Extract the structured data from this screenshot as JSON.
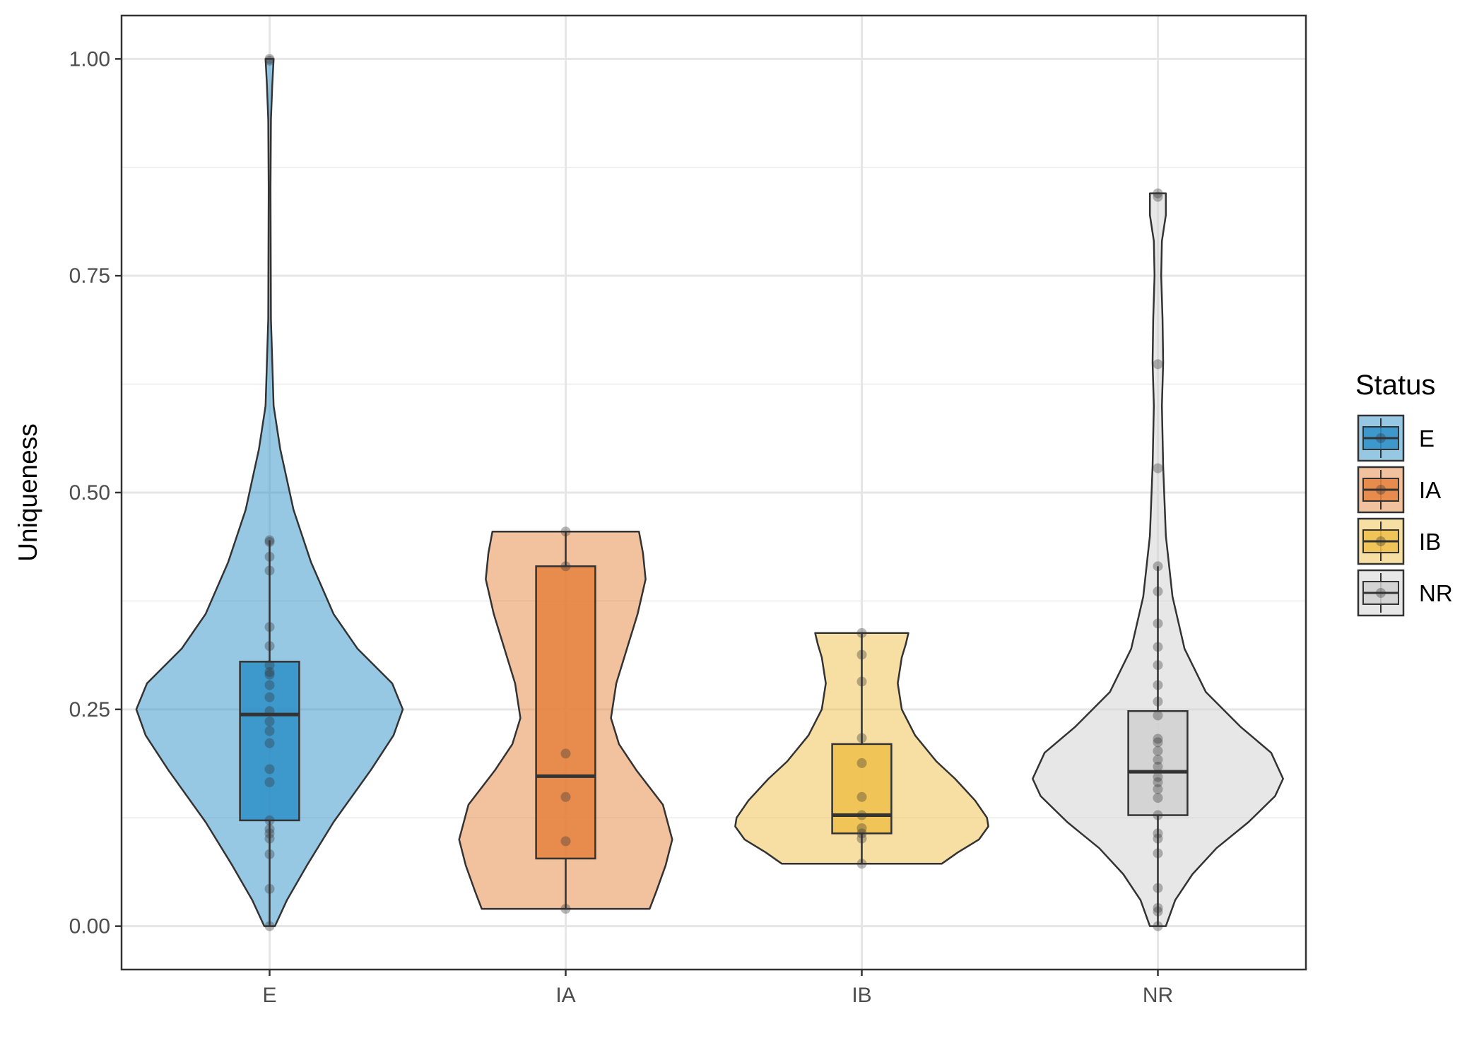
{
  "chart_data": {
    "type": "violin",
    "title": "",
    "xlabel": "",
    "ylabel": "Uniqueness",
    "ylim": [
      -0.05,
      1.05
    ],
    "yticks": [
      0.0,
      0.25,
      0.5,
      0.75,
      1.0
    ],
    "ytick_labels": [
      "0.00",
      "0.25",
      "0.50",
      "0.75",
      "1.00"
    ],
    "categories": [
      "E",
      "IA",
      "IB",
      "NR"
    ],
    "grid": true,
    "legend": {
      "title": "Status",
      "placement": "right",
      "entries": [
        "E",
        "IA",
        "IB",
        "NR"
      ]
    },
    "series": [
      {
        "category": "E",
        "color": "#2E8FC8",
        "box": {
          "min": 0.0,
          "q1": 0.122,
          "median": 0.244,
          "q3": 0.305,
          "max": 0.445
        },
        "points": [
          0.0,
          0.043,
          0.083,
          0.101,
          0.107,
          0.112,
          0.122,
          0.166,
          0.181,
          0.211,
          0.225,
          0.236,
          0.248,
          0.264,
          0.278,
          0.29,
          0.293,
          0.301,
          0.323,
          0.345,
          0.41,
          0.426,
          0.443,
          0.445,
          0.998,
          1.0
        ],
        "violin": [
          [
            0.0,
            0.04
          ],
          [
            0.03,
            0.13
          ],
          [
            0.07,
            0.28
          ],
          [
            0.12,
            0.48
          ],
          [
            0.18,
            0.76
          ],
          [
            0.22,
            0.93
          ],
          [
            0.25,
            1.0
          ],
          [
            0.28,
            0.92
          ],
          [
            0.32,
            0.66
          ],
          [
            0.36,
            0.48
          ],
          [
            0.42,
            0.31
          ],
          [
            0.48,
            0.18
          ],
          [
            0.55,
            0.08
          ],
          [
            0.6,
            0.03
          ],
          [
            0.7,
            0.01
          ],
          [
            0.85,
            0.007
          ],
          [
            0.93,
            0.01
          ],
          [
            0.97,
            0.02
          ],
          [
            1.0,
            0.03
          ]
        ]
      },
      {
        "category": "IA",
        "color": "#E5833E",
        "box": {
          "min": 0.02,
          "q1": 0.078,
          "median": 0.173,
          "q3": 0.415,
          "max": 0.455
        },
        "points": [
          0.02,
          0.098,
          0.149,
          0.199,
          0.415,
          0.455
        ],
        "violin": [
          [
            0.02,
            0.63
          ],
          [
            0.04,
            0.68
          ],
          [
            0.07,
            0.75
          ],
          [
            0.1,
            0.8
          ],
          [
            0.14,
            0.73
          ],
          [
            0.18,
            0.53
          ],
          [
            0.21,
            0.4
          ],
          [
            0.24,
            0.34
          ],
          [
            0.28,
            0.38
          ],
          [
            0.32,
            0.46
          ],
          [
            0.36,
            0.54
          ],
          [
            0.4,
            0.6
          ],
          [
            0.43,
            0.58
          ],
          [
            0.455,
            0.55
          ]
        ]
      },
      {
        "category": "IB",
        "color": "#F0C04A",
        "box": {
          "min": 0.072,
          "q1": 0.107,
          "median": 0.128,
          "q3": 0.21,
          "max": 0.338
        },
        "points": [
          0.072,
          0.101,
          0.107,
          0.113,
          0.128,
          0.149,
          0.188,
          0.217,
          0.282,
          0.313,
          0.338
        ],
        "violin": [
          [
            0.072,
            0.6
          ],
          [
            0.085,
            0.72
          ],
          [
            0.1,
            0.88
          ],
          [
            0.115,
            0.95
          ],
          [
            0.125,
            0.94
          ],
          [
            0.145,
            0.85
          ],
          [
            0.17,
            0.7
          ],
          [
            0.19,
            0.56
          ],
          [
            0.22,
            0.4
          ],
          [
            0.25,
            0.3
          ],
          [
            0.28,
            0.27
          ],
          [
            0.31,
            0.3
          ],
          [
            0.325,
            0.33
          ],
          [
            0.338,
            0.35
          ]
        ]
      },
      {
        "category": "NR",
        "color": "#D0D0D0",
        "box": {
          "min": 0.0,
          "q1": 0.128,
          "median": 0.178,
          "q3": 0.248,
          "max": 0.415
        },
        "points": [
          0.0,
          0.017,
          0.021,
          0.044,
          0.084,
          0.101,
          0.107,
          0.128,
          0.148,
          0.158,
          0.166,
          0.172,
          0.184,
          0.192,
          0.202,
          0.212,
          0.216,
          0.243,
          0.259,
          0.278,
          0.301,
          0.322,
          0.349,
          0.386,
          0.415,
          0.528,
          0.648,
          0.841,
          0.845
        ],
        "violin": [
          [
            0.0,
            0.06
          ],
          [
            0.03,
            0.13
          ],
          [
            0.06,
            0.26
          ],
          [
            0.09,
            0.44
          ],
          [
            0.12,
            0.68
          ],
          [
            0.15,
            0.88
          ],
          [
            0.17,
            0.94
          ],
          [
            0.2,
            0.85
          ],
          [
            0.23,
            0.62
          ],
          [
            0.27,
            0.36
          ],
          [
            0.32,
            0.2
          ],
          [
            0.38,
            0.11
          ],
          [
            0.45,
            0.06
          ],
          [
            0.53,
            0.04
          ],
          [
            0.6,
            0.03
          ],
          [
            0.65,
            0.04
          ],
          [
            0.7,
            0.035
          ],
          [
            0.75,
            0.025
          ],
          [
            0.79,
            0.03
          ],
          [
            0.82,
            0.06
          ],
          [
            0.845,
            0.06
          ]
        ]
      }
    ]
  }
}
